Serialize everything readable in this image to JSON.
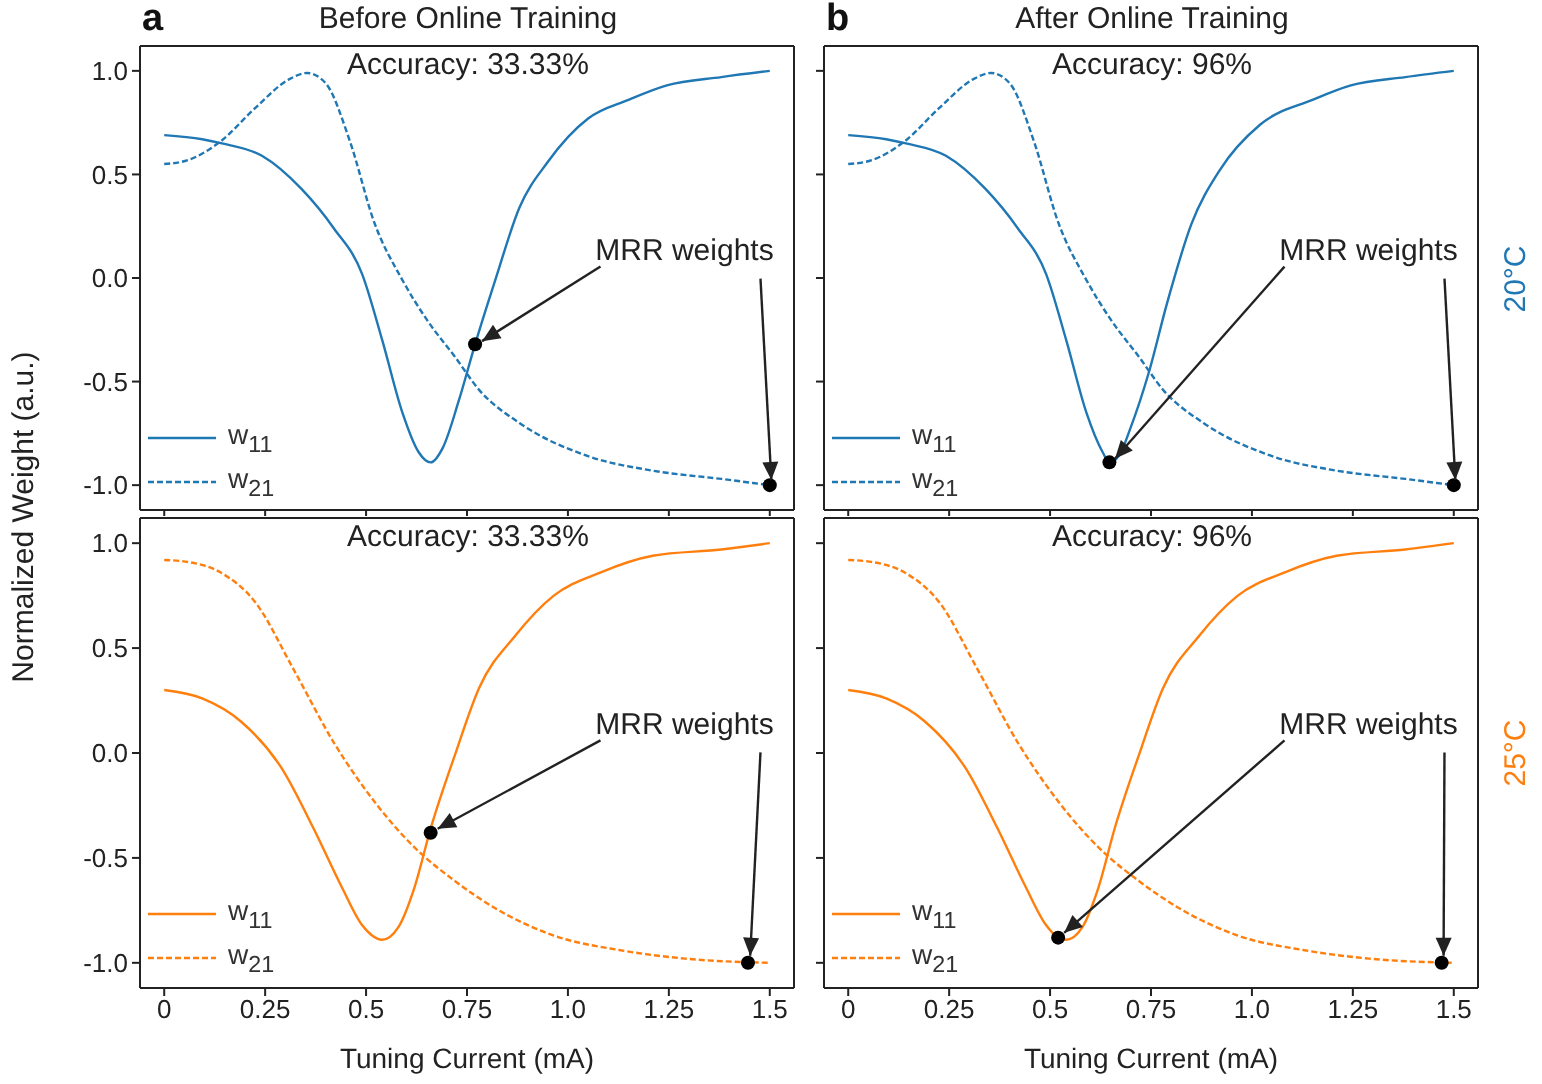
{
  "chart_data": [
    {
      "type": "line",
      "title": "Before Online Training",
      "ylabel": "Normalized Weight (a.u.)",
      "annotations": [
        "a",
        "Accuracy: 33.33%",
        {
          "text": "MRR weights",
          "x": 0.77,
          "y": -0.32
        }
      ],
      "xlim": [
        -0.06,
        1.56
      ],
      "xticks": [
        0,
        0.25,
        0.5,
        0.75,
        1,
        1.25,
        1.5
      ],
      "ylim": [
        -1.12,
        1.12
      ],
      "yticks": [
        {
          "value": -1,
          "label": "-1.0"
        },
        -0.5,
        {
          "value": 0,
          "label": "0.0"
        },
        0.5,
        {
          "value": 1,
          "label": "1.0"
        }
      ],
      "tick_labels": "y",
      "legend": "bottom left",
      "series": [
        {
          "name": "w$_{11}$",
          "color": "#1f77b4",
          "line_style": "solid",
          "x": [
            0,
            0.094,
            0.143,
            0.242,
            0.34,
            0.42,
            0.49,
            0.54,
            0.59,
            0.63,
            0.66,
            0.69,
            0.73,
            0.77,
            0.82,
            0.88,
            0.95,
            1.05,
            1.15,
            1.245,
            1.38,
            1.5
          ],
          "values": [
            0.69,
            0.67,
            0.65,
            0.59,
            0.43,
            0.24,
            0.02,
            -0.3,
            -0.65,
            -0.84,
            -0.89,
            -0.82,
            -0.59,
            -0.32,
            -0.01,
            0.34,
            0.56,
            0.77,
            0.86,
            0.93,
            0.97,
            1.0
          ]
        },
        {
          "name": "w$_{21}$",
          "color": "#1f77b4",
          "line_style": "dashed",
          "x": [
            0,
            0.06,
            0.14,
            0.225,
            0.31,
            0.354,
            0.4,
            0.46,
            0.52,
            0.59,
            0.65,
            0.72,
            0.78,
            0.88,
            1.05,
            1.21,
            1.38,
            1.5
          ],
          "values": [
            0.55,
            0.57,
            0.66,
            0.82,
            0.96,
            0.99,
            0.94,
            0.66,
            0.27,
            -0.01,
            -0.2,
            -0.38,
            -0.54,
            -0.7,
            -0.86,
            -0.93,
            -0.97,
            -1.0
          ]
        },
        {
          "type": "scatter",
          "color": "#000000",
          "marker": "circle",
          "x": [
            0.77,
            1.5
          ],
          "values": [
            -0.32,
            -1.0
          ]
        }
      ]
    },
    {
      "type": "line",
      "title": "After Online Training",
      "y2label": "20°C",
      "annotations": [
        "b",
        "Accuracy: 96%",
        {
          "text": "MRR weights",
          "x": 0.647,
          "y": -0.89
        }
      ],
      "xlim": [
        -0.06,
        1.56
      ],
      "xticks": [
        0,
        0.25,
        0.5,
        0.75,
        1,
        1.25,
        1.5
      ],
      "ylim": [
        -1.12,
        1.12
      ],
      "yticks": [
        -1,
        -0.5,
        0,
        0.5,
        1
      ],
      "tick_labels": false,
      "legend": "bottom left",
      "series": [
        {
          "name": "w$_{11}$",
          "color": "#1f77b4",
          "line_style": "solid",
          "x": [
            0,
            0.094,
            0.143,
            0.242,
            0.34,
            0.42,
            0.49,
            0.54,
            0.59,
            0.63,
            0.647,
            0.67,
            0.7,
            0.744,
            0.79,
            0.85,
            0.92,
            1.02,
            1.15,
            1.245,
            1.38,
            1.5
          ],
          "values": [
            0.69,
            0.67,
            0.65,
            0.59,
            0.43,
            0.24,
            0.02,
            -0.3,
            -0.65,
            -0.84,
            -0.89,
            -0.86,
            -0.72,
            -0.46,
            -0.12,
            0.26,
            0.52,
            0.74,
            0.86,
            0.93,
            0.97,
            1.0
          ]
        },
        {
          "name": "w$_{21}$",
          "color": "#1f77b4",
          "line_style": "dashed",
          "x": [
            0,
            0.06,
            0.14,
            0.225,
            0.31,
            0.354,
            0.4,
            0.46,
            0.52,
            0.59,
            0.65,
            0.72,
            0.78,
            0.88,
            1.05,
            1.21,
            1.38,
            1.5
          ],
          "values": [
            0.55,
            0.57,
            0.66,
            0.82,
            0.96,
            0.99,
            0.94,
            0.66,
            0.27,
            -0.01,
            -0.2,
            -0.38,
            -0.54,
            -0.7,
            -0.86,
            -0.93,
            -0.97,
            -1.0
          ]
        },
        {
          "type": "scatter",
          "color": "#000000",
          "marker": "circle",
          "x": [
            0.647,
            1.5
          ],
          "values": [
            -0.89,
            -1.0
          ]
        }
      ]
    },
    {
      "type": "line",
      "xlabel": "Tuning Current (mA)",
      "annotations": [
        "Accuracy: 33.33%",
        {
          "text": "MRR weights",
          "x": 0.66,
          "y": -0.38
        }
      ],
      "xlim": [
        -0.06,
        1.56
      ],
      "xticks": [
        0,
        0.25,
        0.5,
        0.75,
        {
          "value": 1,
          "label": "1.0"
        },
        1.25,
        1.5
      ],
      "ylim": [
        -1.12,
        1.12
      ],
      "yticks": [
        {
          "value": -1,
          "label": "-1.0"
        },
        -0.5,
        {
          "value": 0,
          "label": "0.0"
        },
        0.5,
        {
          "value": 1,
          "label": "1.0"
        }
      ],
      "legend": "bottom left",
      "series": [
        {
          "name": "w$_{11}$",
          "color": "#ff7f0e",
          "line_style": "solid",
          "x": [
            0,
            0.094,
            0.19,
            0.29,
            0.37,
            0.44,
            0.49,
            0.54,
            0.58,
            0.62,
            0.66,
            0.72,
            0.78,
            0.87,
            0.965,
            1.08,
            1.21,
            1.38,
            1.5
          ],
          "values": [
            0.3,
            0.26,
            0.15,
            -0.07,
            -0.36,
            -0.64,
            -0.82,
            -0.89,
            -0.83,
            -0.64,
            -0.36,
            -0.01,
            0.31,
            0.56,
            0.75,
            0.86,
            0.94,
            0.97,
            1.0
          ]
        },
        {
          "name": "w$_{21}$",
          "color": "#ff7f0e",
          "line_style": "dashed",
          "x": [
            0,
            0.06,
            0.14,
            0.225,
            0.32,
            0.42,
            0.52,
            0.62,
            0.72,
            0.82,
            0.965,
            1.13,
            1.29,
            1.5
          ],
          "values": [
            0.92,
            0.91,
            0.86,
            0.72,
            0.4,
            0.05,
            -0.23,
            -0.45,
            -0.61,
            -0.74,
            -0.87,
            -0.94,
            -0.98,
            -1.0
          ]
        },
        {
          "type": "scatter",
          "color": "#000000",
          "marker": "circle",
          "x": [
            0.66,
            1.446
          ],
          "values": [
            -0.38,
            -1.0
          ]
        }
      ]
    },
    {
      "type": "line",
      "xlabel": "Tuning Current (mA)",
      "y2label": "25°C",
      "annotations": [
        "Accuracy: 96%",
        {
          "text": "MRR weights",
          "x": 0.52,
          "y": -0.88
        }
      ],
      "xlim": [
        -0.06,
        1.56
      ],
      "xticks": [
        0,
        0.25,
        0.5,
        0.75,
        {
          "value": 1,
          "label": "1.0"
        },
        1.25,
        1.5
      ],
      "ylim": [
        -1.12,
        1.12
      ],
      "yticks": [
        -1,
        -0.5,
        0,
        0.5,
        1
      ],
      "tick_labels": "x",
      "legend": "bottom left",
      "series": [
        {
          "name": "w$_{11}$",
          "color": "#ff7f0e",
          "line_style": "solid",
          "x": [
            0,
            0.094,
            0.19,
            0.29,
            0.37,
            0.44,
            0.49,
            0.52,
            0.54,
            0.58,
            0.62,
            0.66,
            0.72,
            0.78,
            0.87,
            0.965,
            1.08,
            1.21,
            1.38,
            1.5
          ],
          "values": [
            0.3,
            0.26,
            0.15,
            -0.07,
            -0.36,
            -0.64,
            -0.82,
            -0.88,
            -0.89,
            -0.83,
            -0.64,
            -0.36,
            -0.01,
            0.31,
            0.56,
            0.75,
            0.86,
            0.94,
            0.97,
            1.0
          ]
        },
        {
          "name": "w$_{21}$",
          "color": "#ff7f0e",
          "line_style": "dashed",
          "x": [
            0,
            0.06,
            0.14,
            0.225,
            0.32,
            0.42,
            0.52,
            0.62,
            0.72,
            0.82,
            0.965,
            1.13,
            1.29,
            1.5
          ],
          "values": [
            0.92,
            0.91,
            0.86,
            0.72,
            0.4,
            0.05,
            -0.23,
            -0.45,
            -0.61,
            -0.74,
            -0.87,
            -0.94,
            -0.98,
            -1.0
          ]
        },
        {
          "type": "scatter",
          "color": "#000000",
          "marker": "circle",
          "x": [
            0.52,
            1.47
          ],
          "values": [
            -0.88,
            -1.0
          ]
        }
      ]
    }
  ]
}
